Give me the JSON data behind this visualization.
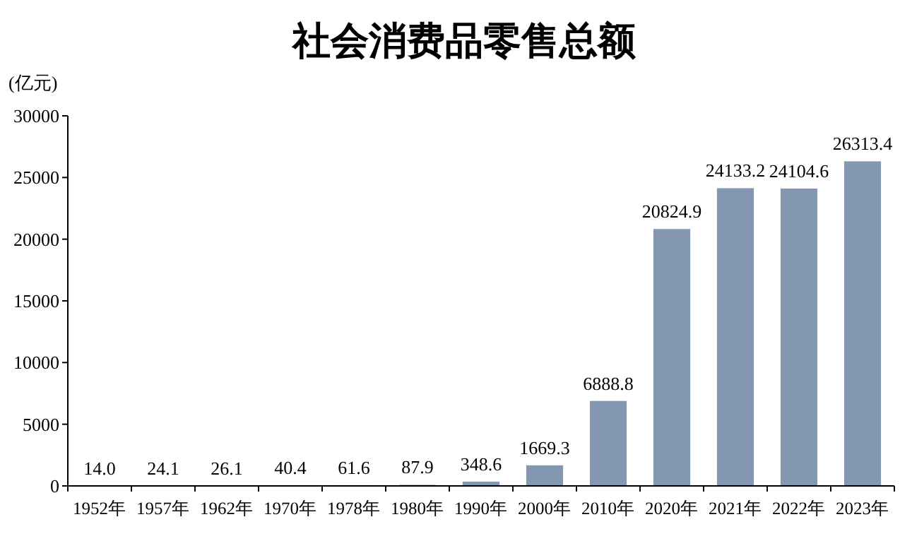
{
  "chart_data": {
    "type": "bar",
    "title": "社会消费品零售总额",
    "ylabel": "(亿元)",
    "categories": [
      "1952年",
      "1957年",
      "1962年",
      "1970年",
      "1978年",
      "1980年",
      "1990年",
      "2000年",
      "2010年",
      "2020年",
      "2021年",
      "2022年",
      "2023年"
    ],
    "values": [
      14.0,
      24.1,
      26.1,
      40.4,
      61.6,
      87.9,
      348.6,
      1669.3,
      6888.8,
      20824.9,
      24133.2,
      24104.6,
      26313.4
    ],
    "value_labels": [
      "14.0",
      "24.1",
      "26.1",
      "40.4",
      "61.6",
      "87.9",
      "348.6",
      "1669.3",
      "6888.8",
      "20824.9",
      "24133.2",
      "24104.6",
      "26313.4"
    ],
    "color": "#8497b0",
    "ylim": [
      0,
      30000
    ],
    "yticks": [
      0,
      5000,
      10000,
      15000,
      20000,
      25000,
      30000
    ],
    "grid": false
  }
}
